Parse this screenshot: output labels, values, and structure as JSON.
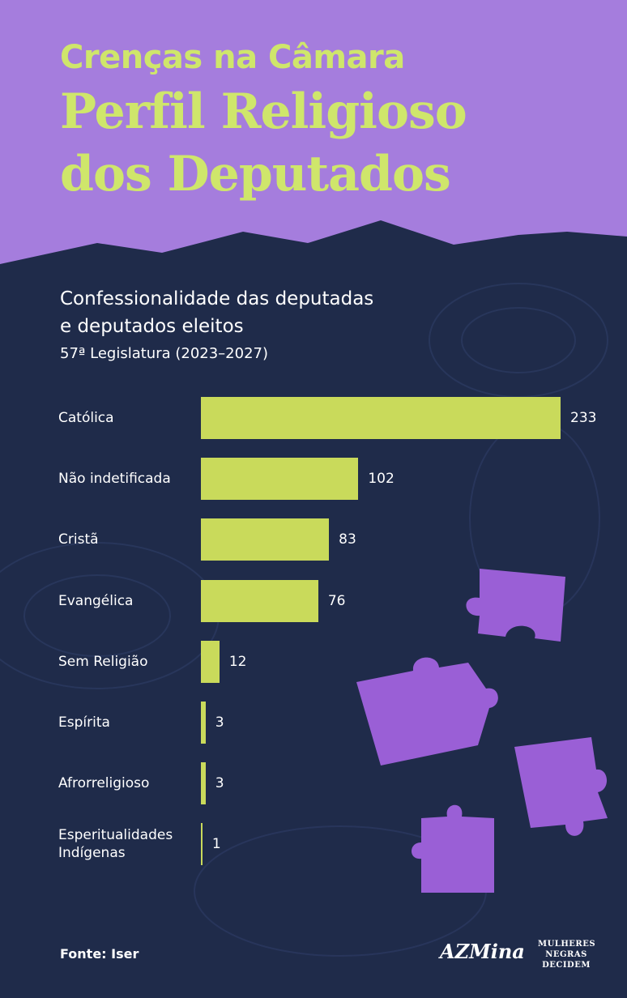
{
  "header": {
    "kicker": "Crenças na Câmara",
    "title_lines": [
      "Perfil Religioso",
      "dos Deputados"
    ]
  },
  "chart_data": {
    "type": "bar",
    "orientation": "horizontal",
    "title_lines": [
      "Confessionalidade das deputadas",
      "e deputados eleitos"
    ],
    "subtitle": "57ª Legislatura (2023–2027)",
    "categories": [
      "Católica",
      "Não indetificada",
      "Cristã",
      "Evangélica",
      "Sem Religião",
      "Espírita",
      "Afrorreligioso",
      "Esperitualidades Indígenas"
    ],
    "values": [
      233,
      102,
      83,
      76,
      12,
      3,
      3,
      1
    ],
    "color": "#c9da5b"
  },
  "footer": {
    "source": "Fonte: Iser",
    "logo_azmina": "AZMina",
    "logo_mnd": [
      "MULHERES",
      "NEGRAS",
      "DECIDEM"
    ]
  }
}
